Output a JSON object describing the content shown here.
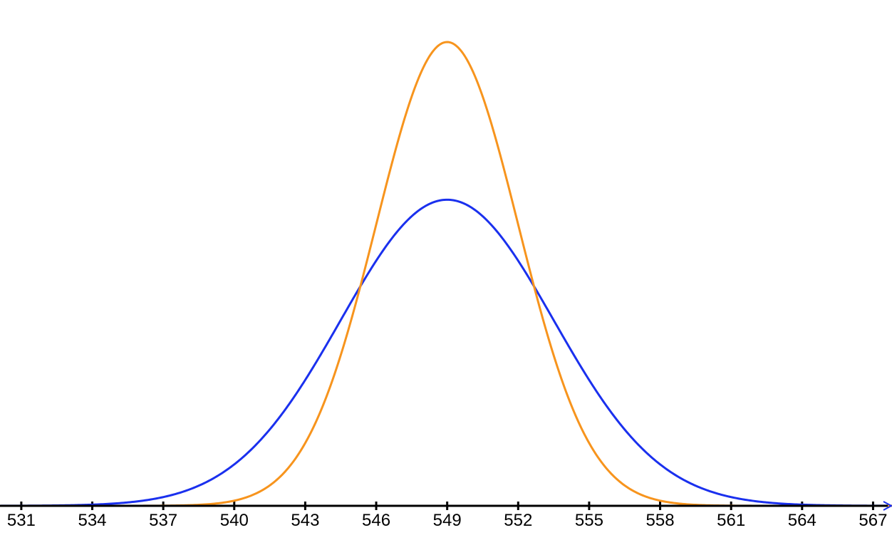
{
  "chart_data": {
    "type": "line",
    "title": "",
    "xlabel": "",
    "ylabel": "",
    "x_ticks": [
      "531",
      "534",
      "537",
      "540",
      "543",
      "546",
      "549",
      "552",
      "555",
      "558",
      "561",
      "564",
      "567"
    ],
    "xlim": [
      530.1,
      567.8
    ],
    "grid": false,
    "legend": "none",
    "series": [
      {
        "type": "normal_curve",
        "mean": 549,
        "sd": 4.5,
        "peak_relative": 0.66,
        "color": "#1a30ee"
      },
      {
        "type": "normal_curve",
        "mean": 549,
        "sd": 3.0,
        "peak_relative": 1.0,
        "color": "#f7941d"
      }
    ],
    "axis_color": "#000000"
  }
}
